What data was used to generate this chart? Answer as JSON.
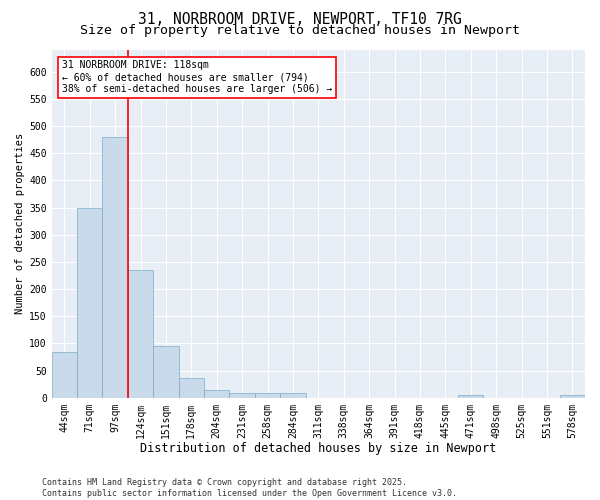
{
  "title": "31, NORBROOM DRIVE, NEWPORT, TF10 7RG",
  "subtitle": "Size of property relative to detached houses in Newport",
  "xlabel": "Distribution of detached houses by size in Newport",
  "ylabel": "Number of detached properties",
  "bar_color": "#c9daea",
  "bar_edge_color": "#7aaac8",
  "background_color": "#e8eef5",
  "grid_color": "#ffffff",
  "vline_color": "red",
  "annotation_text": "31 NORBROOM DRIVE: 118sqm\n← 60% of detached houses are smaller (794)\n38% of semi-detached houses are larger (506) →",
  "annotation_box_color": "white",
  "annotation_box_edge": "red",
  "categories": [
    "44sqm",
    "71sqm",
    "97sqm",
    "124sqm",
    "151sqm",
    "178sqm",
    "204sqm",
    "231sqm",
    "258sqm",
    "284sqm",
    "311sqm",
    "338sqm",
    "364sqm",
    "391sqm",
    "418sqm",
    "445sqm",
    "471sqm",
    "498sqm",
    "525sqm",
    "551sqm",
    "578sqm"
  ],
  "values": [
    84,
    350,
    480,
    235,
    96,
    36,
    15,
    8,
    8,
    8,
    0,
    0,
    0,
    0,
    0,
    0,
    5,
    0,
    0,
    0,
    5
  ],
  "ylim": [
    0,
    640
  ],
  "yticks": [
    0,
    50,
    100,
    150,
    200,
    250,
    300,
    350,
    400,
    450,
    500,
    550,
    600
  ],
  "footer": "Contains HM Land Registry data © Crown copyright and database right 2025.\nContains public sector information licensed under the Open Government Licence v3.0.",
  "title_fontsize": 10.5,
  "subtitle_fontsize": 9.5,
  "xlabel_fontsize": 8.5,
  "ylabel_fontsize": 7.5,
  "tick_fontsize": 7,
  "footer_fontsize": 6,
  "annotation_fontsize": 7
}
